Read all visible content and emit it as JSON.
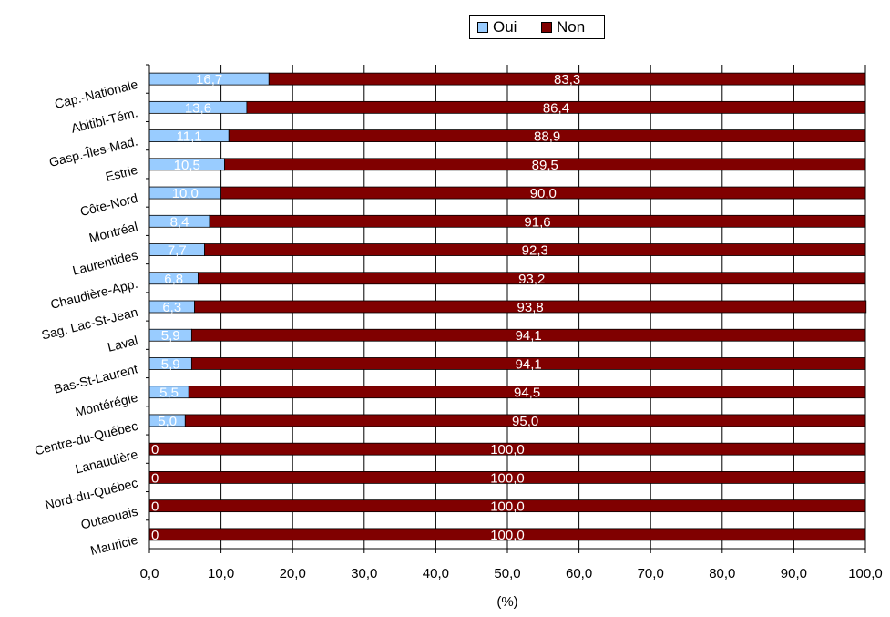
{
  "chart_data": {
    "type": "bar",
    "orientation": "horizontal",
    "stacked": true,
    "categories": [
      "Cap.-Nationale",
      "Abitibi-Tém.",
      "Gasp.-Îles-Mad.",
      "Estrie",
      "Côte-Nord",
      "Montréal",
      "Laurentides",
      "Chaudière-App.",
      "Sag. Lac-St-Jean",
      "Laval",
      "Bas-St-Laurent",
      "Montérégie",
      "Centre-du-Québec",
      "Lanaudière",
      "Nord-du-Québec",
      "Outaouais",
      "Mauricie"
    ],
    "series": [
      {
        "name": "Oui",
        "color": "#99CCFF",
        "values": [
          16.7,
          13.6,
          11.1,
          10.5,
          10.0,
          8.4,
          7.7,
          6.8,
          6.3,
          5.9,
          5.9,
          5.5,
          5.0,
          0,
          0,
          0,
          0
        ],
        "labels": [
          "16,7",
          "13,6",
          "11,1",
          "10,5",
          "10,0",
          "8,4",
          "7,7",
          "6,8",
          "6,3",
          "5,9",
          "5,9",
          "5,5",
          "5,0",
          "0",
          "0",
          "0",
          "0"
        ]
      },
      {
        "name": "Non",
        "color": "#800000",
        "values": [
          83.3,
          86.4,
          88.9,
          89.5,
          90.0,
          91.6,
          92.3,
          93.2,
          93.8,
          94.1,
          94.1,
          94.5,
          95.0,
          100.0,
          100.0,
          100.0,
          100.0
        ],
        "labels": [
          "83,3",
          "86,4",
          "88,9",
          "89,5",
          "90,0",
          "91,6",
          "92,3",
          "93,2",
          "93,8",
          "94,1",
          "94,1",
          "94,5",
          "95,0",
          "100,0",
          "100,0",
          "100,0",
          "100,0"
        ]
      }
    ],
    "x_ticks": [
      "0,0",
      "10,0",
      "20,0",
      "30,0",
      "40,0",
      "50,0",
      "60,0",
      "70,0",
      "80,0",
      "90,0",
      "100,0"
    ],
    "xlim": [
      0,
      100
    ],
    "xlabel": "(%)",
    "ylabel": "",
    "title": "",
    "grid": true,
    "legend_position": "top"
  }
}
